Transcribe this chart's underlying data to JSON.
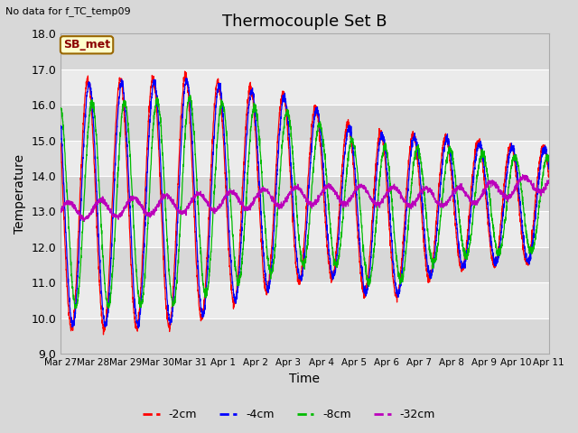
{
  "title": "Thermocouple Set B",
  "xlabel": "Time",
  "ylabel": "Temperature",
  "ylim": [
    9.0,
    18.0
  ],
  "yticks": [
    9.0,
    10.0,
    11.0,
    12.0,
    13.0,
    14.0,
    15.0,
    16.0,
    17.0,
    18.0
  ],
  "xtick_labels": [
    "Mar 27",
    "Mar 28",
    "Mar 29",
    "Mar 30",
    "Mar 31",
    "Apr 1",
    "Apr 2",
    "Apr 3",
    "Apr 4",
    "Apr 5",
    "Apr 6",
    "Apr 7",
    "Apr 8",
    "Apr 9",
    "Apr 10",
    "Apr 11"
  ],
  "colors": {
    "red": "#ff0000",
    "blue": "#0000ff",
    "green": "#00bb00",
    "purple": "#bb00bb"
  },
  "legend_labels": [
    "-2cm",
    "-4cm",
    "-8cm",
    "-32cm"
  ],
  "nodata_text": "No data for f_TC_temp09",
  "sbmet_text": "SB_met",
  "fig_facecolor": "#d8d8d8",
  "band_light": "#ebebeb",
  "band_dark": "#d8d8d8"
}
